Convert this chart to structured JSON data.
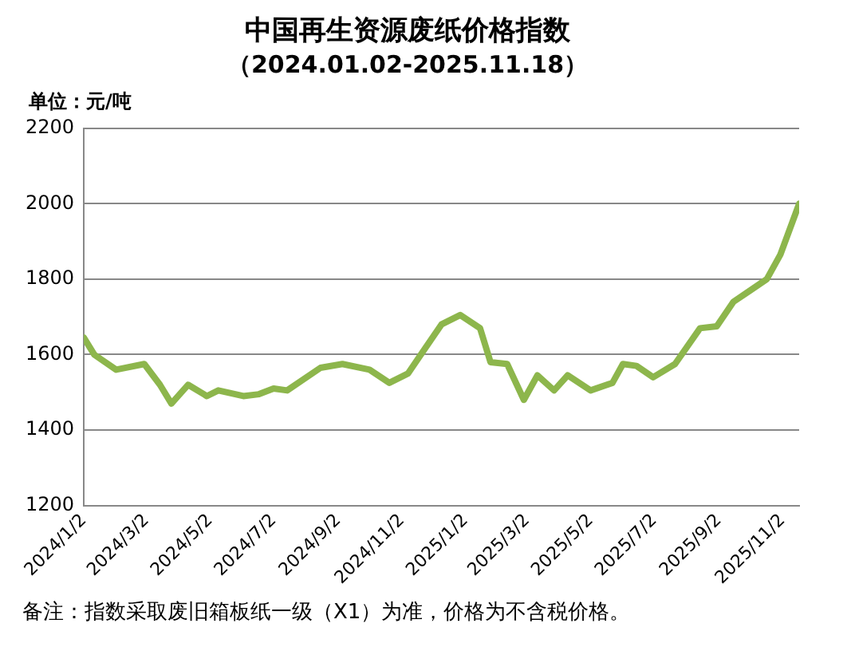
{
  "chart_data": {
    "type": "line",
    "title": "中国再生资源废纸价格指数",
    "subtitle": "（2024.01.02-2025.11.18）",
    "ylabel": "单位：元/吨",
    "annotations": [
      "备注：指数采取废旧箱板纸一级（X1）为准，价格为不含税价格。"
    ],
    "x": [
      "2024-01-02",
      "2024-01-12",
      "2024-02-02",
      "2024-02-29",
      "2024-03-15",
      "2024-03-26",
      "2024-04-11",
      "2024-04-29",
      "2024-05-10",
      "2024-06-03",
      "2024-06-18",
      "2024-07-02",
      "2024-07-15",
      "2024-08-16",
      "2024-09-06",
      "2024-10-02",
      "2024-10-21",
      "2024-11-08",
      "2024-11-24",
      "2024-12-10",
      "2024-12-28",
      "2025-01-16",
      "2025-01-26",
      "2025-02-11",
      "2025-02-27",
      "2025-03-12",
      "2025-03-28",
      "2025-04-10",
      "2025-05-02",
      "2025-05-23",
      "2025-06-02",
      "2025-06-15",
      "2025-07-01",
      "2025-07-22",
      "2025-08-15",
      "2025-08-31",
      "2025-09-16",
      "2025-10-02",
      "2025-10-18",
      "2025-10-31",
      "2025-11-18"
    ],
    "series": [
      {
        "color": "#8db64c",
        "values": [
          1645,
          1600,
          1560,
          1575,
          1520,
          1470,
          1520,
          1490,
          1505,
          1490,
          1495,
          1510,
          1505,
          1565,
          1575,
          1560,
          1525,
          1550,
          1615,
          1680,
          1705,
          1670,
          1580,
          1575,
          1480,
          1545,
          1505,
          1545,
          1505,
          1525,
          1575,
          1570,
          1540,
          1575,
          1670,
          1675,
          1740,
          1770,
          1800,
          1865,
          2000
        ]
      }
    ],
    "xlim": [
      "2024-01-02",
      "2025-11-18"
    ],
    "xticks": [
      {
        "value": "2024-01-02",
        "label": "2024/1/2"
      },
      {
        "value": "2024-03-02",
        "label": "2024/3/2"
      },
      {
        "value": "2024-05-02",
        "label": "2024/5/2"
      },
      {
        "value": "2024-07-02",
        "label": "2024/7/2"
      },
      {
        "value": "2024-09-02",
        "label": "2024/9/2"
      },
      {
        "value": "2024-11-02",
        "label": "2024/11/2"
      },
      {
        "value": "2025-01-02",
        "label": "2025/1/2"
      },
      {
        "value": "2025-03-02",
        "label": "2025/3/2"
      },
      {
        "value": "2025-05-02",
        "label": "2025/5/2"
      },
      {
        "value": "2025-07-02",
        "label": "2025/7/2"
      },
      {
        "value": "2025-09-02",
        "label": "2025/9/2"
      },
      {
        "value": "2025-11-02",
        "label": "2025/11/2"
      }
    ],
    "ylim": [
      1200,
      2200
    ],
    "yticks": [
      1200,
      1400,
      1600,
      1800,
      2000,
      2200
    ],
    "grid": "y",
    "legend": false,
    "marker": "none",
    "line_style": "solid"
  }
}
